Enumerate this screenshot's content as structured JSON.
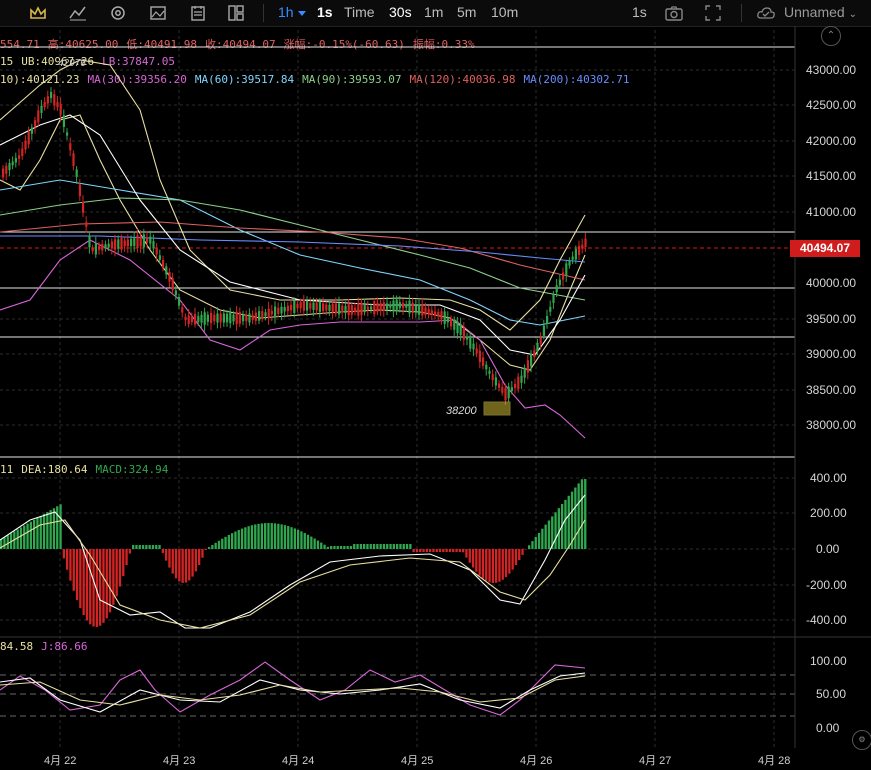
{
  "toolbar": {
    "timeframe_active": "1h",
    "timeframes": [
      "1s",
      "Time",
      "30s",
      "1m",
      "5m",
      "10m"
    ],
    "right_interval": "1s",
    "layout_name": "Unnamed"
  },
  "ohlc": {
    "open_partial": "554.71",
    "high_label": "高:40625.00",
    "low_label": "低:40491.98",
    "close_label": "收:40494.07",
    "change_label": "涨幅:-0.15%(-60.63)",
    "amplitude_label": "振幅:0.33%"
  },
  "boll": {
    "prefix": "15",
    "ub": "UB:40967.26",
    "lb": "LB:37847.05"
  },
  "ma": {
    "ma10": "10):40121.23",
    "ma30": "MA(30):39356.20",
    "ma60": "MA(60):39517.84",
    "ma90": "MA(90):39593.07",
    "ma120": "MA(120):40036.98",
    "ma200": "MA(200):40302.71"
  },
  "price_axis": [
    "43000.00",
    "42500.00",
    "42000.00",
    "41500.00",
    "41000.00",
    "40000.00",
    "39500.00",
    "39000.00",
    "38500.00",
    "38000.00"
  ],
  "current_price": "40494.07",
  "annotations": {
    "high_mark": "42976",
    "low_mark": "38200"
  },
  "macd": {
    "prefix": "11",
    "dea": "DEA:180.64",
    "macd": "MACD:324.94",
    "axis": [
      "400.00",
      "200.00",
      "0.00",
      "-200.00",
      "-400.00"
    ]
  },
  "kdj": {
    "prefix": "84.58",
    "j": "J:86.66",
    "axis": [
      "100.00",
      "50.00",
      "0.00"
    ]
  },
  "dates": [
    "4月 22",
    "4月 23",
    "4月 24",
    "4月 25",
    "4月 26",
    "4月 27",
    "4月 28"
  ],
  "colors": {
    "up": "#2fa84f",
    "down": "#d62424",
    "ma10": "#e8e0a0",
    "ma30": "#d966d9",
    "ma60": "#7fd6ff",
    "ma90": "#8ad08a",
    "ma120": "#e06060",
    "ma200": "#6a8cff",
    "accent": "#3a8bff"
  }
}
